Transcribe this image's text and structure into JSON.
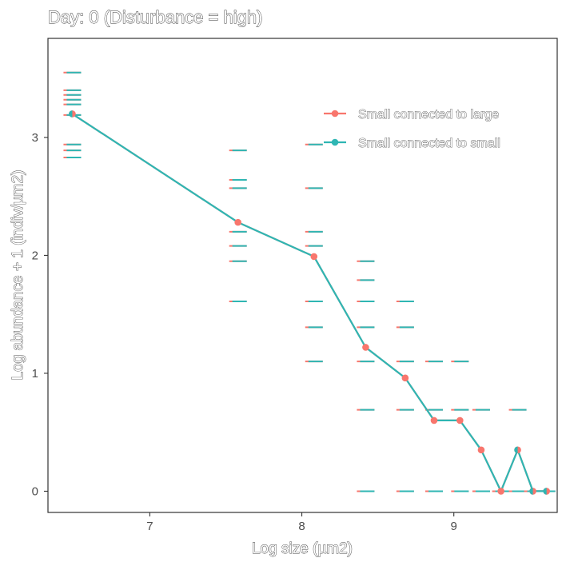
{
  "chart_data": {
    "type": "line",
    "title": "Day: 0 (Disturbance = high)",
    "xlabel": "Log size (µm2)",
    "ylabel": "Log abundance + 1 (indiv/µm2)",
    "xlim": [
      6.33,
      9.68
    ],
    "ylim": [
      -0.18,
      3.84
    ],
    "x_ticks": [
      7,
      8,
      9
    ],
    "x_tick_labels": [
      "7",
      "8",
      "9"
    ],
    "y_ticks": [
      0,
      1,
      2,
      3
    ],
    "y_tick_labels": [
      "0",
      "1",
      "2",
      "3"
    ],
    "grid": false,
    "legend_position": "top-right",
    "series": [
      {
        "name": "Small connected to large",
        "color": "#F8766D",
        "x": [
          6.49,
          7.58,
          8.08,
          8.42,
          8.68,
          8.87,
          9.04,
          9.18,
          9.31,
          9.42,
          9.52,
          9.61
        ],
        "values": [
          3.2,
          2.28,
          1.99,
          1.22,
          0.96,
          0.6,
          0.6,
          0.35,
          0.0,
          0.35,
          0.0,
          0.0
        ]
      },
      {
        "name": "Small connected to small",
        "color": "#2FB6B3",
        "x": [
          6.49,
          7.58,
          8.08,
          8.42,
          8.68,
          8.87,
          9.04,
          9.18,
          9.31,
          9.42,
          9.52,
          9.61
        ],
        "values": [
          3.2,
          2.28,
          1.99,
          1.22,
          0.96,
          0.6,
          0.6,
          0.35,
          0.0,
          0.35,
          0.0,
          0.0
        ]
      }
    ],
    "replicate_dashes": [
      {
        "x": 6.49,
        "values": [
          3.55,
          3.4,
          3.36,
          3.32,
          3.28,
          3.19,
          2.94,
          2.89,
          2.83
        ]
      },
      {
        "x": 7.58,
        "values": [
          2.89,
          2.64,
          2.57,
          2.2,
          2.08,
          1.95,
          1.61
        ]
      },
      {
        "x": 8.08,
        "values": [
          2.94,
          2.57,
          2.2,
          2.08,
          1.61,
          1.39,
          1.1
        ]
      },
      {
        "x": 8.42,
        "values": [
          1.95,
          1.79,
          1.61,
          1.39,
          1.1,
          0.69,
          0.0
        ]
      },
      {
        "x": 8.68,
        "values": [
          1.61,
          1.39,
          1.1,
          0.69,
          0.0
        ]
      },
      {
        "x": 8.87,
        "values": [
          1.1,
          0.69,
          0.0
        ]
      },
      {
        "x": 9.04,
        "values": [
          1.1,
          0.69,
          0.0
        ]
      },
      {
        "x": 9.18,
        "values": [
          0.69,
          0.0
        ]
      },
      {
        "x": 9.31,
        "values": [
          0.0
        ]
      },
      {
        "x": 9.42,
        "values": [
          0.69,
          0.0
        ]
      },
      {
        "x": 9.52,
        "values": [
          0.0
        ]
      },
      {
        "x": 9.61,
        "values": [
          0.0
        ]
      }
    ]
  }
}
